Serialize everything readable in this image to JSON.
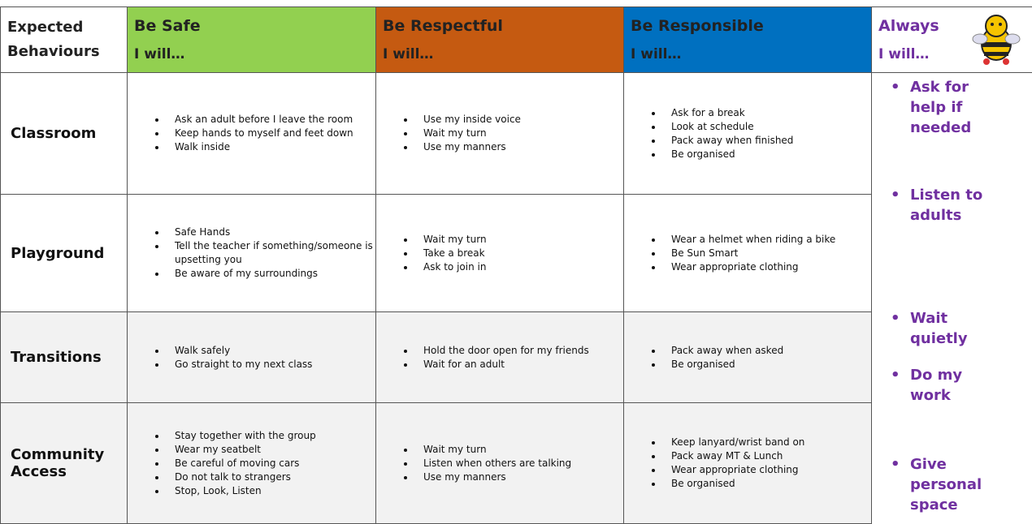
{
  "header": {
    "corner": "Expected Behaviours",
    "columns": [
      {
        "title": "Be Safe",
        "subtitle": "I will…"
      },
      {
        "title": "Be Respectful",
        "subtitle": "I will…"
      },
      {
        "title": "Be Responsible",
        "subtitle": "I will…"
      },
      {
        "title": "Always",
        "subtitle": "I will…"
      }
    ]
  },
  "rows": [
    {
      "label": "Classroom",
      "cells": [
        [
          "Ask an adult before I leave the room",
          "Keep hands to myself and feet down",
          "Walk inside"
        ],
        [
          "Use my inside voice",
          "Wait my turn",
          "Use my manners"
        ],
        [
          "Ask for a break",
          "Look at schedule",
          "Pack away when finished",
          "Be organised"
        ]
      ]
    },
    {
      "label": "Playground",
      "cells": [
        [
          "Safe Hands",
          "Tell the teacher if something/someone is upsetting you",
          "Be aware of my surroundings"
        ],
        [
          "Wait my turn",
          "Take a break",
          "Ask to join in"
        ],
        [
          "Wear a helmet when riding a bike",
          "Be Sun Smart",
          "Wear appropriate clothing"
        ]
      ]
    },
    {
      "label": "Transitions",
      "cells": [
        [
          "Walk safely",
          "Go straight to my next class"
        ],
        [
          "Hold the door open for my friends",
          "Wait for an adult"
        ],
        [
          "Pack away when asked",
          "Be organised"
        ]
      ]
    },
    {
      "label": "Community Access",
      "cells": [
        [
          "Stay together with the group",
          "Wear my seatbelt",
          "Be careful of moving cars",
          "Do not talk to strangers",
          "Stop, Look, Listen"
        ],
        [
          "Wait my turn",
          "Listen when others are talking",
          "Use my manners"
        ],
        [
          "Keep lanyard/wrist band on",
          "Pack away MT & Lunch",
          "Wear appropriate clothing",
          "Be organised"
        ]
      ]
    }
  ],
  "always": [
    "Ask for help if needed",
    "Listen to adults",
    "Wait quietly",
    "Do my work",
    "Give personal space"
  ]
}
